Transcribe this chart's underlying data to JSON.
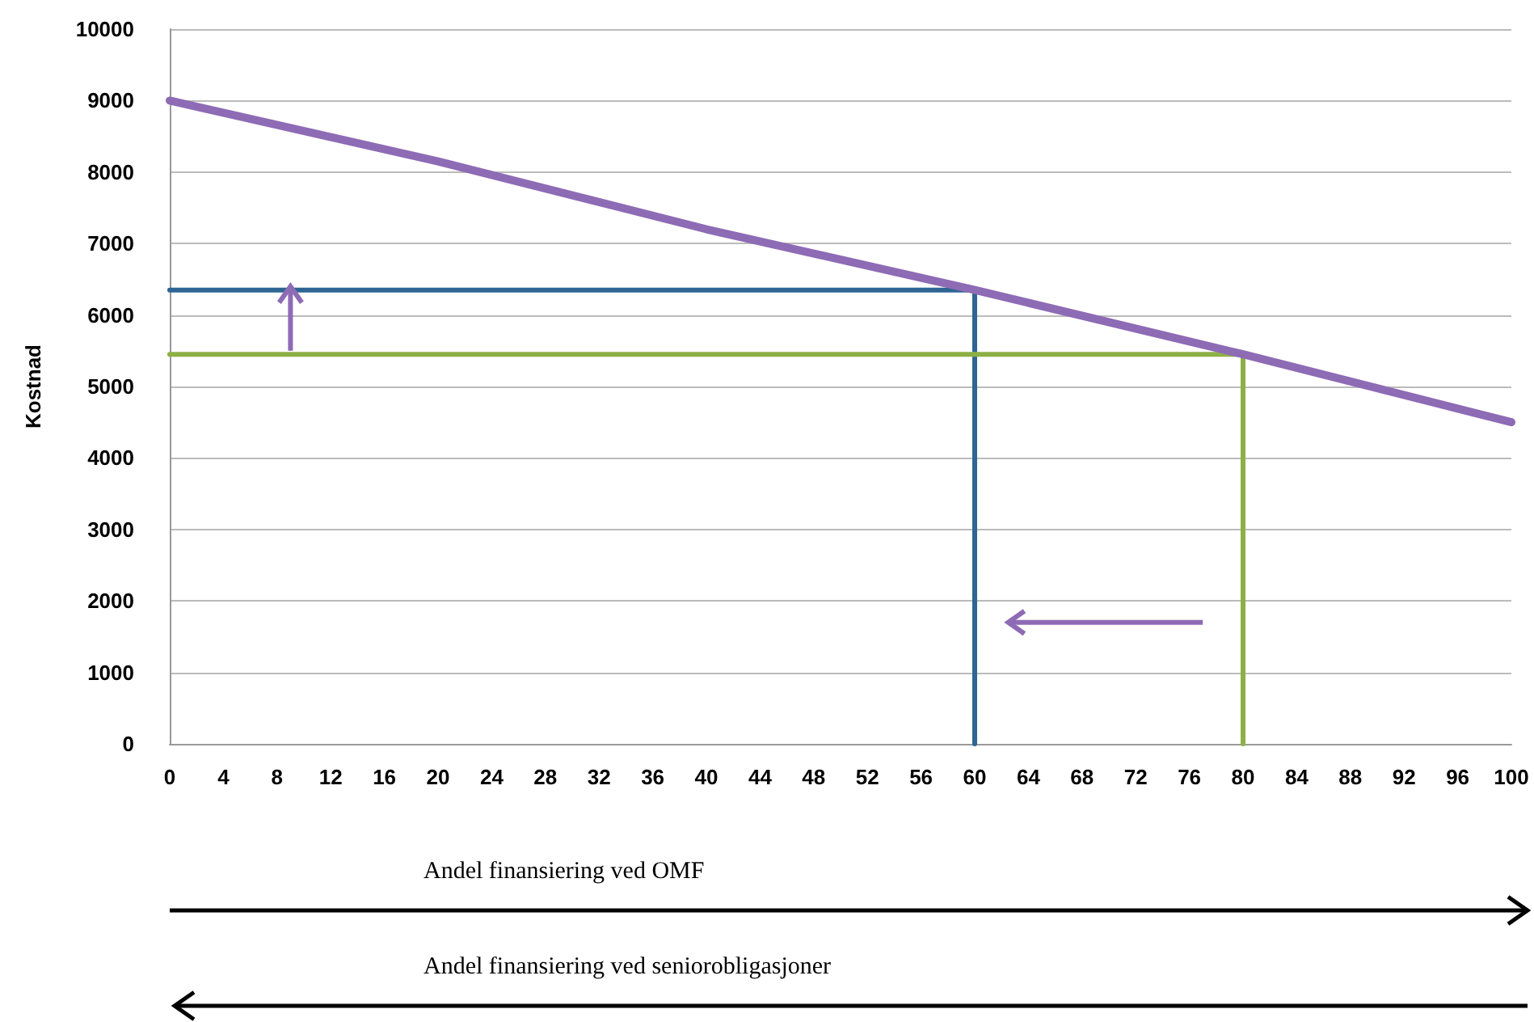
{
  "chart_data": {
    "type": "line",
    "ylabel": "Kostnad",
    "xlim": [
      0,
      100
    ],
    "xticks": [
      0,
      4,
      8,
      12,
      16,
      20,
      24,
      28,
      32,
      36,
      40,
      44,
      48,
      52,
      56,
      60,
      64,
      68,
      72,
      76,
      80,
      84,
      88,
      92,
      96,
      100
    ],
    "ylim": [
      0,
      10000
    ],
    "yticks": [
      0,
      1000,
      2000,
      3000,
      4000,
      5000,
      6000,
      7000,
      8000,
      9000,
      10000
    ],
    "grid": "y",
    "marker": "none",
    "line_style": "solid",
    "annotations": [
      "Andel finansiering ved OMF",
      "Andel finansiering ved seniorobligasjoner"
    ],
    "series": [
      {
        "color": "#8e6bb5",
        "x": [
          0,
          20,
          40,
          60,
          80,
          100
        ],
        "values": [
          9000,
          8150,
          7200,
          6350,
          5450,
          4500
        ]
      },
      {
        "color": "#2e6593",
        "x": [
          0,
          60,
          60
        ],
        "values": [
          6350,
          6350,
          0
        ]
      },
      {
        "color": "#8db045",
        "x": [
          0,
          80,
          80
        ],
        "values": [
          5450,
          5450,
          0
        ]
      }
    ]
  }
}
